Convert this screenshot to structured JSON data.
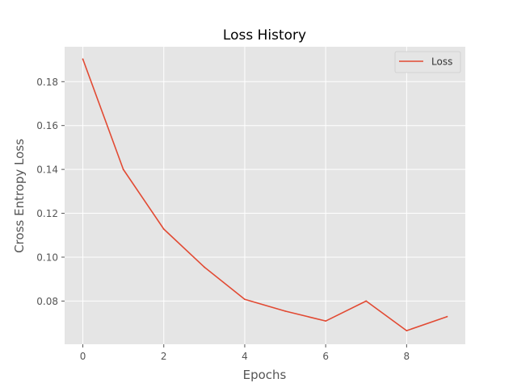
{
  "chart_data": {
    "type": "line",
    "title": "Loss History",
    "xlabel": "Epochs",
    "ylabel": "Cross Entropy Loss",
    "x": [
      0,
      1,
      2,
      3,
      4,
      5,
      6,
      7,
      8,
      9
    ],
    "series": [
      {
        "name": "Loss",
        "color": "#E24A33",
        "values": [
          0.1903,
          0.14,
          0.1128,
          0.0955,
          0.0808,
          0.0754,
          0.0709,
          0.08,
          0.0665,
          0.0729
        ]
      }
    ],
    "xlim": [
      -0.45,
      9.45
    ],
    "ylim": [
      0.0603,
      0.1959
    ],
    "xticks": [
      0,
      2,
      4,
      6,
      8
    ],
    "yticks": [
      0.08,
      0.1,
      0.12,
      0.14,
      0.16,
      0.18
    ],
    "xtick_labels": [
      "0",
      "2",
      "4",
      "6",
      "8"
    ],
    "ytick_labels": [
      "0.08",
      "0.10",
      "0.12",
      "0.14",
      "0.16",
      "0.18"
    ],
    "grid": true,
    "legend_position": "top-right",
    "background_color": "#E5E5E5",
    "grid_color": "#FFFFFF"
  }
}
